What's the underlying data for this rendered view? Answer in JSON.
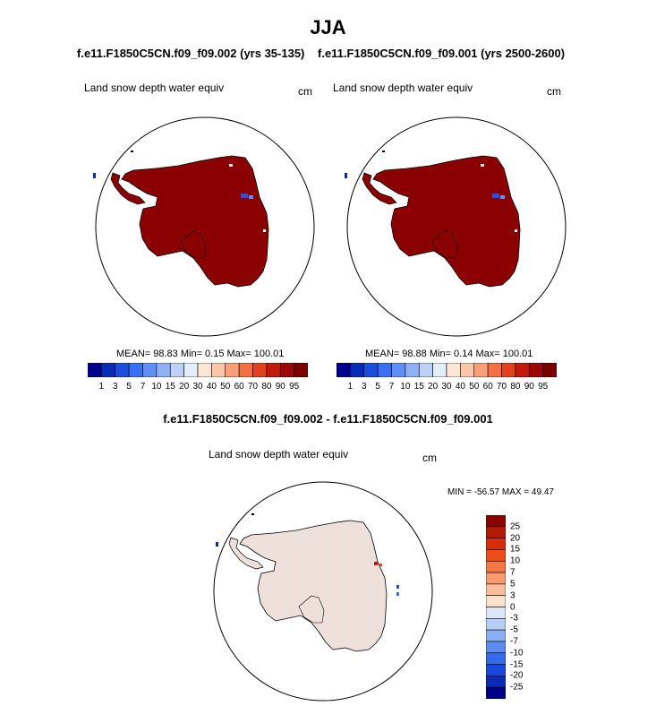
{
  "title": "JJA",
  "panels": [
    {
      "case_title": "f.e11.F1850C5CN.f09_f09.002 (yrs 35-135)",
      "variable": "Land snow depth water equiv",
      "units": "cm",
      "stats": {
        "mean": "98.83",
        "min": "0.15",
        "max": "100.01",
        "text": "MEAN=  98.83  Min=   0.15  Max= 100.01"
      }
    },
    {
      "case_title": "f.e11.F1850C5CN.f09_f09.001 (yrs 2500-2600)",
      "variable": "Land snow depth water equiv",
      "units": "cm",
      "stats": {
        "mean": "98.88",
        "min": "0.14",
        "max": "100.01",
        "text": "MEAN=  98.88  Min=   0.14  Max= 100.01"
      }
    }
  ],
  "absolute_colorbar": {
    "labels": [
      "1",
      "3",
      "5",
      "7",
      "10",
      "15",
      "20",
      "30",
      "40",
      "50",
      "60",
      "70",
      "80",
      "90",
      "95"
    ],
    "colors": [
      "#00008f",
      "#0a2bb8",
      "#1c4ede",
      "#3a6ef5",
      "#5f8ff7",
      "#8fb0f6",
      "#bcd1f7",
      "#e4eefa",
      "#fde5d4",
      "#fcc7a8",
      "#f9a079",
      "#f46f45",
      "#e3411d",
      "#c21a0b",
      "#9c0805",
      "#7a0000"
    ]
  },
  "difference": {
    "title": "f.e11.F1850C5CN.f09_f09.002 - f.e11.F1850C5CN.f09_f09.001",
    "variable": "Land snow depth water equiv",
    "units": "cm",
    "minmax": "MIN = -56.57 MAX =  49.47",
    "colorbar": {
      "labels": [
        "25",
        "20",
        "15",
        "10",
        "7",
        "5",
        "3",
        "0",
        "-3",
        "-5",
        "-7",
        "-10",
        "-15",
        "-20",
        "-25"
      ],
      "colors": [
        "#8b0000",
        "#b01a05",
        "#d42d0a",
        "#ee4f1a",
        "#f57645",
        "#f89a6f",
        "#fbbe9c",
        "#fde0cb",
        "#dce8f8",
        "#b7cdf5",
        "#8caef3",
        "#5f8cf0",
        "#3769ec",
        "#1a47dc",
        "#0b2bb5",
        "#000088"
      ]
    }
  },
  "colors": {
    "antarctica_fill": "#8b0000",
    "difference_base": "#f5ddcf",
    "difference_light_blue": "#d9e6f6"
  }
}
